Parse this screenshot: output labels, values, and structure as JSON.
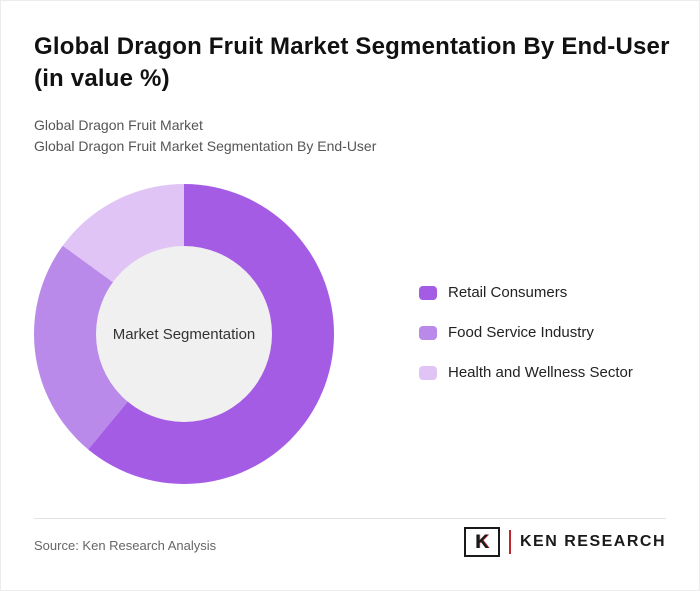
{
  "header": {
    "title": "Global Dragon Fruit Market Segmentation By End-User (in value %)",
    "subtitle1": "Global Dragon Fruit Market",
    "subtitle2": "Global Dragon Fruit Market Segmentation By End-User"
  },
  "chart_data": {
    "type": "pie",
    "variant": "donut",
    "title": "Global Dragon Fruit Market Segmentation By End-User (in value %)",
    "center_label": "Market Segmentation",
    "labels": [
      "Retail Consumers",
      "Food Service Industry",
      "Health and Wellness Sector"
    ],
    "values": [
      61,
      24,
      15
    ],
    "units": "value %",
    "colors": [
      "#a55ce5",
      "#ba8aea",
      "#e1c4f6"
    ],
    "hole_color": "#f0f0f0",
    "start_angle_deg": 0,
    "direction": "clockwise",
    "legend_position": "right"
  },
  "footer": {
    "source": "Source: Ken Research Analysis",
    "brand": {
      "logo_letter": "K",
      "name": "KEN RESEARCH"
    }
  }
}
